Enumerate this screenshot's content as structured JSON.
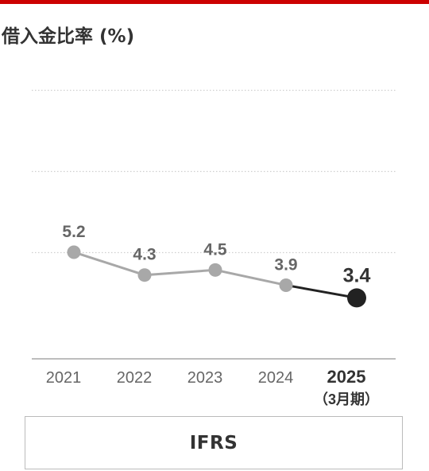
{
  "title": "借入金比率 (%)",
  "colors": {
    "accent": "#cc0000",
    "past_series": "#a8a8a8",
    "current_series": "#222222",
    "grid": "#cfcfcf",
    "axis": "#bdbdbd",
    "past_label": "#666666",
    "current_label": "#333333"
  },
  "chart_data": {
    "type": "line",
    "title": "借入金比率 (%)",
    "categories": [
      "2021",
      "2022",
      "2023",
      "2024",
      "2025"
    ],
    "category_sublabels": [
      "",
      "",
      "",
      "",
      "（3月期）"
    ],
    "highlight_index": 4,
    "series": [
      {
        "values": [
          5.2,
          4.3,
          4.5,
          3.9,
          3.4
        ]
      }
    ],
    "data_labels": [
      "5.2",
      "4.3",
      "4.5",
      "3.9",
      "3.4"
    ],
    "ylim": [
      1.0,
      11.0
    ],
    "gridlines": [
      5.2,
      8.4,
      11.6
    ],
    "grid": true,
    "legend": "none"
  },
  "standard": "IFRS"
}
